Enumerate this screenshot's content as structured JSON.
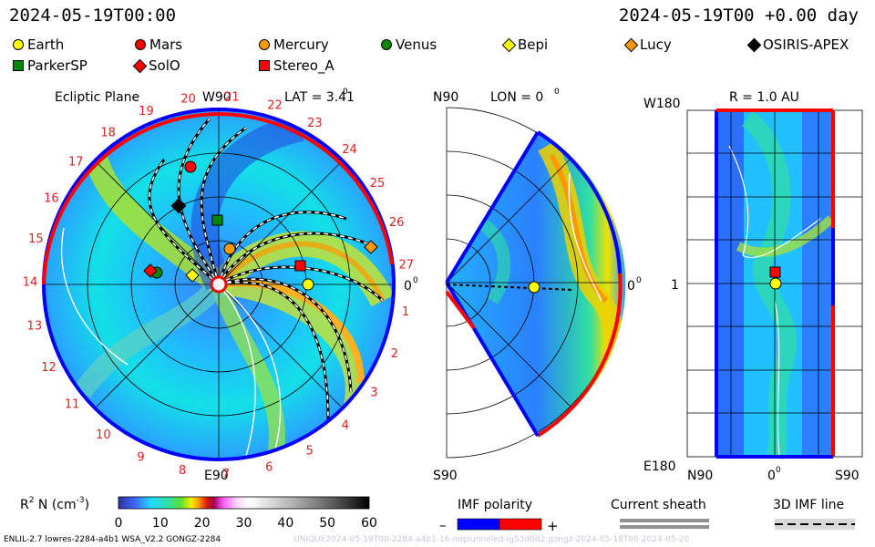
{
  "header": {
    "time_left": "2024-05-19T00:00",
    "time_right": "2024-05-19T00 +0.00 day"
  },
  "legend": [
    {
      "name": "Earth",
      "shape": "circle",
      "color": "#ffff00"
    },
    {
      "name": "Mars",
      "shape": "circle",
      "color": "#ff0000"
    },
    {
      "name": "Mercury",
      "shape": "circle",
      "color": "#ff9900"
    },
    {
      "name": "Venus",
      "shape": "circle",
      "color": "#008800"
    },
    {
      "name": "Bepi",
      "shape": "diamond",
      "color": "#ffff00"
    },
    {
      "name": "Lucy",
      "shape": "diamond",
      "color": "#ff9900"
    },
    {
      "name": "OSIRIS-APEX",
      "shape": "diamond",
      "color": "#000000"
    },
    {
      "name": "ParkerSP",
      "shape": "square",
      "color": "#008800"
    },
    {
      "name": "SolO",
      "shape": "diamond",
      "color": "#ff0000"
    },
    {
      "name": "Stereo_A",
      "shape": "square",
      "color": "#ff0000"
    }
  ],
  "panels": {
    "ecliptic": {
      "title": "Ecliptic Plane",
      "lat": "LAT = 3.41",
      "deg": "0",
      "top_label": "W90",
      "bottom_label": "E90",
      "right_label": "0",
      "right_deg": "0",
      "carrington": [
        "1",
        "2",
        "3",
        "4",
        "5",
        "6",
        "7",
        "8",
        "9",
        "10",
        "11",
        "12",
        "13",
        "14",
        "15",
        "16",
        "17",
        "18",
        "19",
        "20",
        "21",
        "22",
        "23",
        "24",
        "25",
        "26",
        "27"
      ]
    },
    "meridional": {
      "title": "LON = 0",
      "deg": "0",
      "top_label": "N90",
      "bottom_label": "S90",
      "right_label": "0",
      "right_deg": "0"
    },
    "rightpanel": {
      "title": "R = 1.0 AU",
      "top_left": "W180",
      "bottom_left": "E180",
      "left_mid": "1",
      "x_left": "N90",
      "x_mid": "0",
      "x_mid_deg": "0",
      "x_right": "S90"
    }
  },
  "colorbar": {
    "label": "R",
    "label_sup": "2",
    "label_rest": " N (cm",
    "label_sup2": "-3",
    "label_end": ")",
    "ticks": [
      "0",
      "10",
      "20",
      "30",
      "40",
      "50",
      "60"
    ],
    "range": [
      0,
      60
    ]
  },
  "imf_polarity": {
    "title": "IMF polarity",
    "minus": "–",
    "plus": "+",
    "neg_color": "#0000ff",
    "pos_color": "#ff0000"
  },
  "current_sheath": {
    "title": "Current sheath"
  },
  "imf_line": {
    "title": "3D IMF line"
  },
  "footer": {
    "left": "ENLIL-2.7 lowres-2284-a4b1 WSA_V2.2 GONGZ-2284",
    "right": "UNIQUE2024-05-19T00-2284-a4b1-16-noplunneled-lg53d0d2.gongz-2024-05-18T00  2024-05-20"
  }
}
